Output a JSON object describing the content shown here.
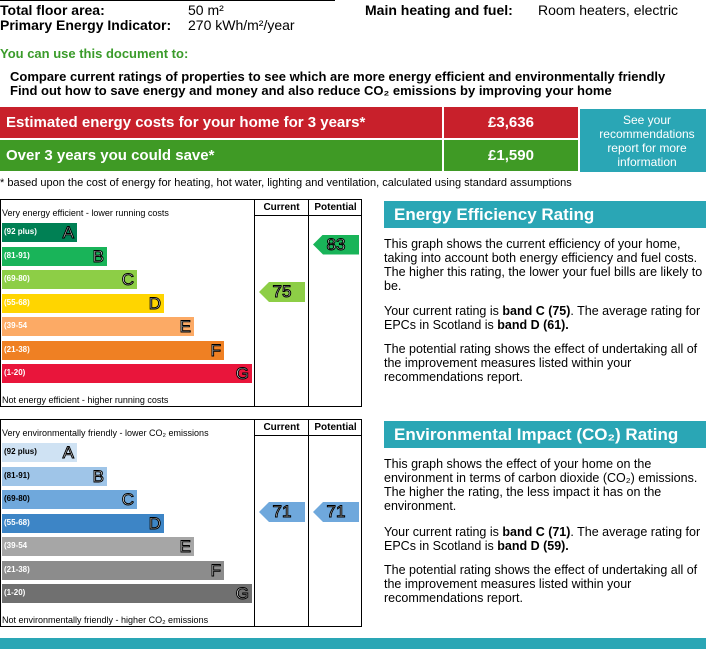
{
  "header": {
    "floor_area_label": "Total floor area:",
    "floor_area_value": "50 m²",
    "pei_label": "Primary Energy Indicator:",
    "pei_value": "270 kWh/m²/year",
    "heating_label": "Main heating and fuel:",
    "heating_value": "Room heaters, electric"
  },
  "intro": {
    "title": "You can use this document to:",
    "bullets": [
      "Compare current ratings of properties to see which are more energy efficient and environmentally friendly",
      "Find out how to save energy and money and also reduce CO₂ emissions by improving your home"
    ]
  },
  "costs": {
    "estimated_label": "Estimated energy costs for your home for 3 years*",
    "estimated_value": "£3,636",
    "save_label": "Over 3 years you could save*",
    "save_value": "£1,590",
    "see_recs": "See your recommendations report for more information",
    "footnote": "* based upon the cost of energy for heating, hot water, lighting and ventilation, calculated using standard assumptions"
  },
  "colors": {
    "estimated_bg": "#c8202b",
    "save_bg": "#3f9a25",
    "teal": "#2aa6b5",
    "eer_bands": [
      "#008054",
      "#19b459",
      "#8dce46",
      "#ffd500",
      "#fcaa65",
      "#ef8023",
      "#e9153b"
    ],
    "ei_bands": [
      "#cfe2f3",
      "#9fc5e8",
      "#6fa8dc",
      "#3d85c6",
      "#a6a6a6",
      "#8c8c8c",
      "#707070"
    ]
  },
  "eer_graph": {
    "col_current": "Current",
    "col_potential": "Potential",
    "top_note": "Very energy efficient - lower running costs",
    "bottom_note": "Not energy efficient - higher running costs",
    "bands": [
      {
        "range": "(92 plus)",
        "letter": "A"
      },
      {
        "range": "(81-91)",
        "letter": "B"
      },
      {
        "range": "(69-80)",
        "letter": "C"
      },
      {
        "range": "(55-68)",
        "letter": "D"
      },
      {
        "range": "(39-54",
        "letter": "E"
      },
      {
        "range": "(21-38)",
        "letter": "F"
      },
      {
        "range": "(1-20)",
        "letter": "G"
      }
    ],
    "current": "75",
    "potential": "83"
  },
  "ei_graph": {
    "col_current": "Current",
    "col_potential": "Potential",
    "top_note": "Very environmentally friendly - lower CO₂ emissions",
    "bottom_note": "Not environmentally friendly - higher CO₂ emissions",
    "bands": [
      {
        "range": "(92 plus)",
        "letter": "A"
      },
      {
        "range": "(81-91)",
        "letter": "B"
      },
      {
        "range": "(69-80)",
        "letter": "C"
      },
      {
        "range": "(55-68)",
        "letter": "D"
      },
      {
        "range": "(39-54",
        "letter": "E"
      },
      {
        "range": "(21-38)",
        "letter": "F"
      },
      {
        "range": "(1-20)",
        "letter": "G"
      }
    ],
    "current": "71",
    "potential": "71"
  },
  "eer_panel": {
    "title": "Energy Efficiency Rating",
    "p1": "This graph shows the current efficiency of your home, taking into account both energy efficiency and fuel costs. The higher this rating, the lower your fuel bills are likely to be.",
    "p2_pre": "Your current rating is ",
    "p2_b1": "band C (75)",
    "p2_mid": ". The average rating for EPCs in Scotland is ",
    "p2_b2": "band D (61).",
    "p3": "The potential rating shows the effect of undertaking all of the improvement measures listed within your recommendations report."
  },
  "ei_panel": {
    "title": "Environmental Impact (CO₂) Rating",
    "p1": "This graph shows the effect of your home on the environment in terms of carbon dioxide (CO₂) emissions. The higher the rating, the less impact it has on the environment.",
    "p2_pre": "Your current rating is ",
    "p2_b1": "band C (71)",
    "p2_mid": ". The average rating for EPCs in Scotland is ",
    "p2_b2": "band D (59).",
    "p3": "The potential rating shows the effect of undertaking all of the improvement measures listed within your recommendations report."
  }
}
